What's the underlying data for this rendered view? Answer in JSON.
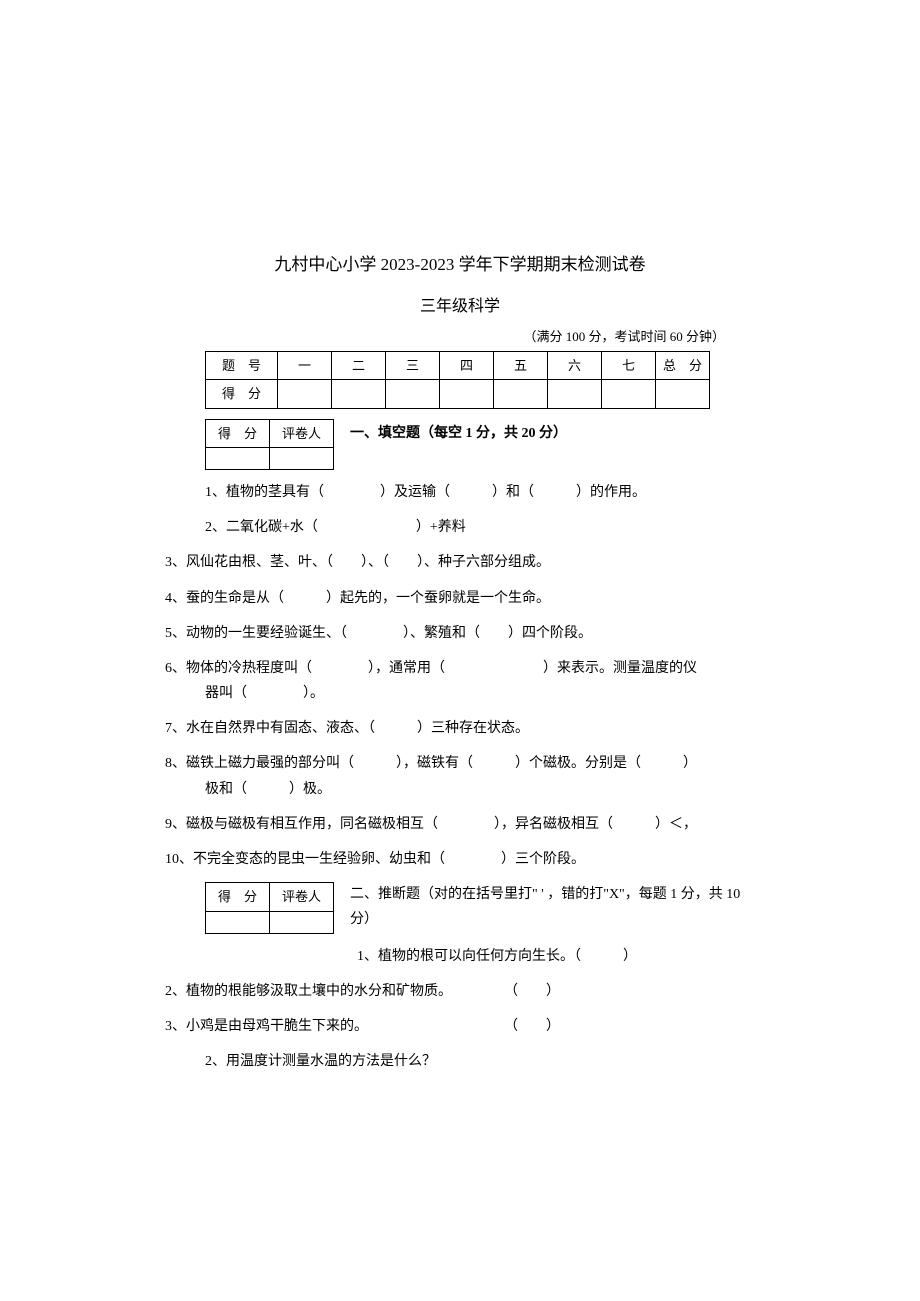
{
  "title": "九村中心小学 2023-2023 学年下学期期末检测试卷",
  "subtitle": "三年级科学",
  "meta": "（满分 100 分，考试时间 60 分钟）",
  "score_table": {
    "row1_label": "题　号",
    "cols": [
      "一",
      "二",
      "三",
      "四",
      "五",
      "六",
      "七",
      "总　分"
    ],
    "row2_label": "得　分"
  },
  "grader": {
    "col1": "得　分",
    "col2": "评卷人"
  },
  "section1": {
    "header": "一、填空题（每空 1 分，共 20 分）",
    "q1": "1、植物的茎具有（　　　　）及运输（　　　）和（　　　）的作用。",
    "q2": "2、二氧化碳+水（　　　　　　　）+养料",
    "q3": "3、风仙花由根、茎、叶、（　　）、（　　）、种子六部分组成。",
    "q4": "4、蚕的生命是从（　　　）起先的，一个蚕卵就是一个生命。",
    "q5": "5、动物的一生要经验诞生、（　　　　）、繁殖和（　　）四个阶段。",
    "q6": "6、物体的冷热程度叫（　　　　），通常用（　　　　　　　）来表示。测量温度的仪",
    "q6b": "器叫（　　　　）。",
    "q7": "7、水在自然界中有固态、液态、（　　　）三种存在状态。",
    "q8": "8、磁铁上磁力最强的部分叫（　　　），磁铁有（　　　）个磁极。分别是（　　　）",
    "q8b": "极和（　　　）极。",
    "q9": "9、磁极与磁极有相互作用，同名磁极相互（　　　　），异名磁极相互（　　　）＜，",
    "q10": "10、不完全变态的昆虫一生经验卵、幼虫和（　　　　）三个阶段。"
  },
  "section2": {
    "header": "二、推断题（对的在括号里打\" ' ，错的打\"X\"，每题 1 分，共 10 分）",
    "q1": "1、植物的根可以向任何方向生长。（　　　）",
    "q2_text": "2、植物的根能够汲取土壤中的水分和矿物质。",
    "q2_bracket": "（　　）",
    "q3_text": "3、小鸡是由母鸡干脆生下来的。",
    "q3_bracket": "（　　）"
  },
  "extra": {
    "q2": "2、用温度计测量水温的方法是什么？"
  },
  "colors": {
    "background": "#ffffff",
    "text": "#000000",
    "border": "#000000"
  },
  "fonts": {
    "title_size": 17,
    "subtitle_size": 16,
    "body_size": 14,
    "meta_size": 13
  }
}
